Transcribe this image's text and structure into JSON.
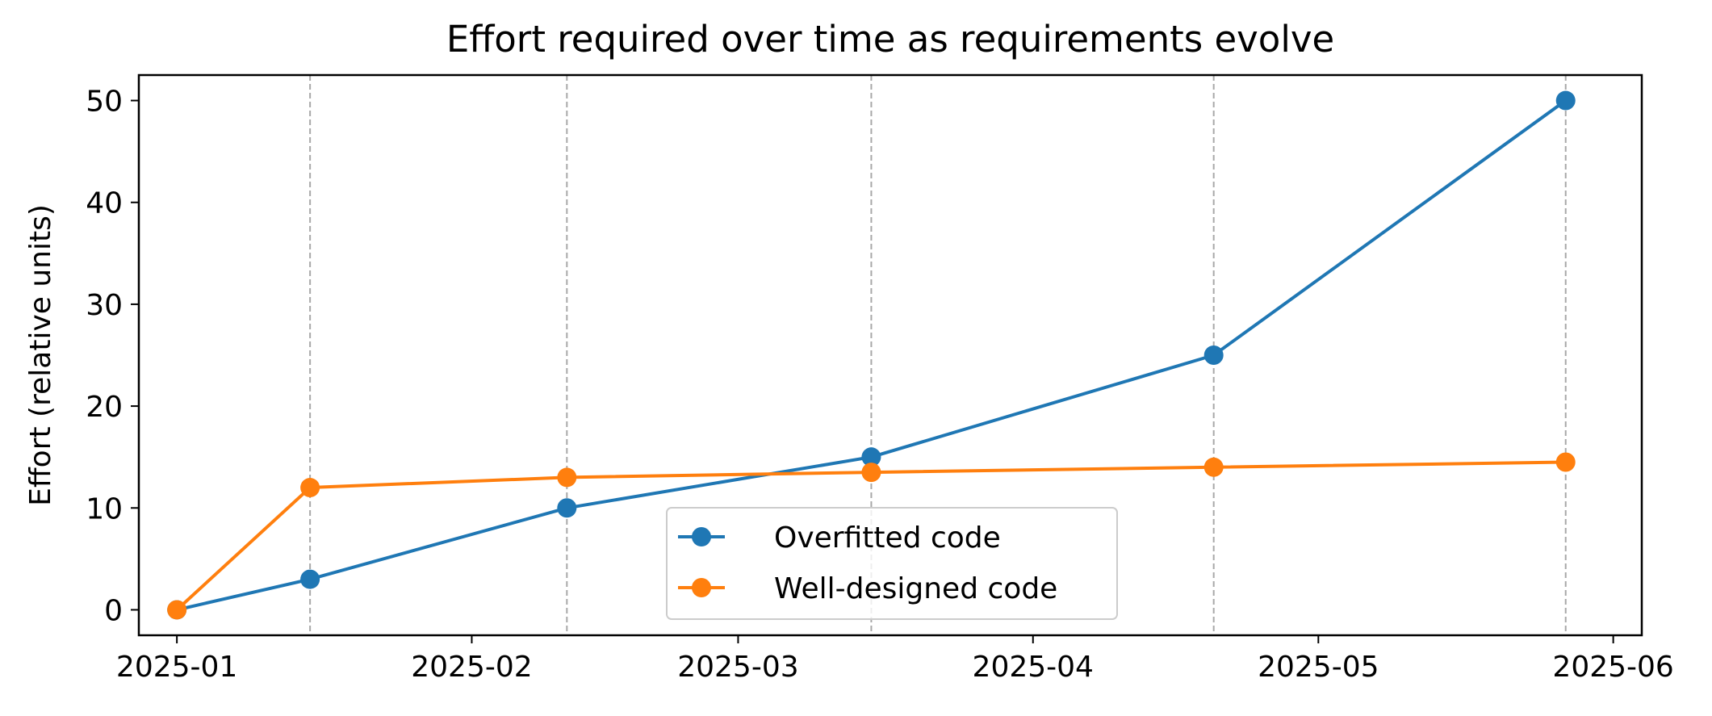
{
  "chart_data": {
    "type": "line",
    "title": "Effort required over time as requirements evolve",
    "xlabel": "",
    "ylabel": "Effort (relative units)",
    "x_axis": {
      "kind": "date",
      "range": [
        "2024-12-28",
        "2025-06-04"
      ],
      "ticks": [
        "2025-01-01",
        "2025-02-01",
        "2025-03-01",
        "2025-04-01",
        "2025-05-01",
        "2025-06-01"
      ],
      "tick_labels": [
        "2025-01",
        "2025-02",
        "2025-03",
        "2025-04",
        "2025-05",
        "2025-06"
      ]
    },
    "y_axis": {
      "range": [
        -2.5,
        52.5
      ],
      "ticks": [
        0,
        10,
        20,
        30,
        40,
        50
      ],
      "tick_labels": [
        "0",
        "10",
        "20",
        "30",
        "40",
        "50"
      ]
    },
    "grid": "vertical dashed lines at milestone dates",
    "milestones": [
      "2025-01-15",
      "2025-02-11",
      "2025-03-15",
      "2025-04-20",
      "2025-05-27"
    ],
    "x": [
      "2025-01-01",
      "2025-01-15",
      "2025-02-11",
      "2025-03-15",
      "2025-04-20",
      "2025-05-27"
    ],
    "series": [
      {
        "name": "Overfitted code",
        "color": "#1f77b4",
        "values": [
          0,
          3,
          10,
          15,
          25,
          50
        ]
      },
      {
        "name": "Well-designed code",
        "color": "#ff7f0e",
        "values": [
          0,
          12,
          13,
          13.5,
          14,
          14.5
        ]
      }
    ],
    "legend_position": "lower center"
  }
}
